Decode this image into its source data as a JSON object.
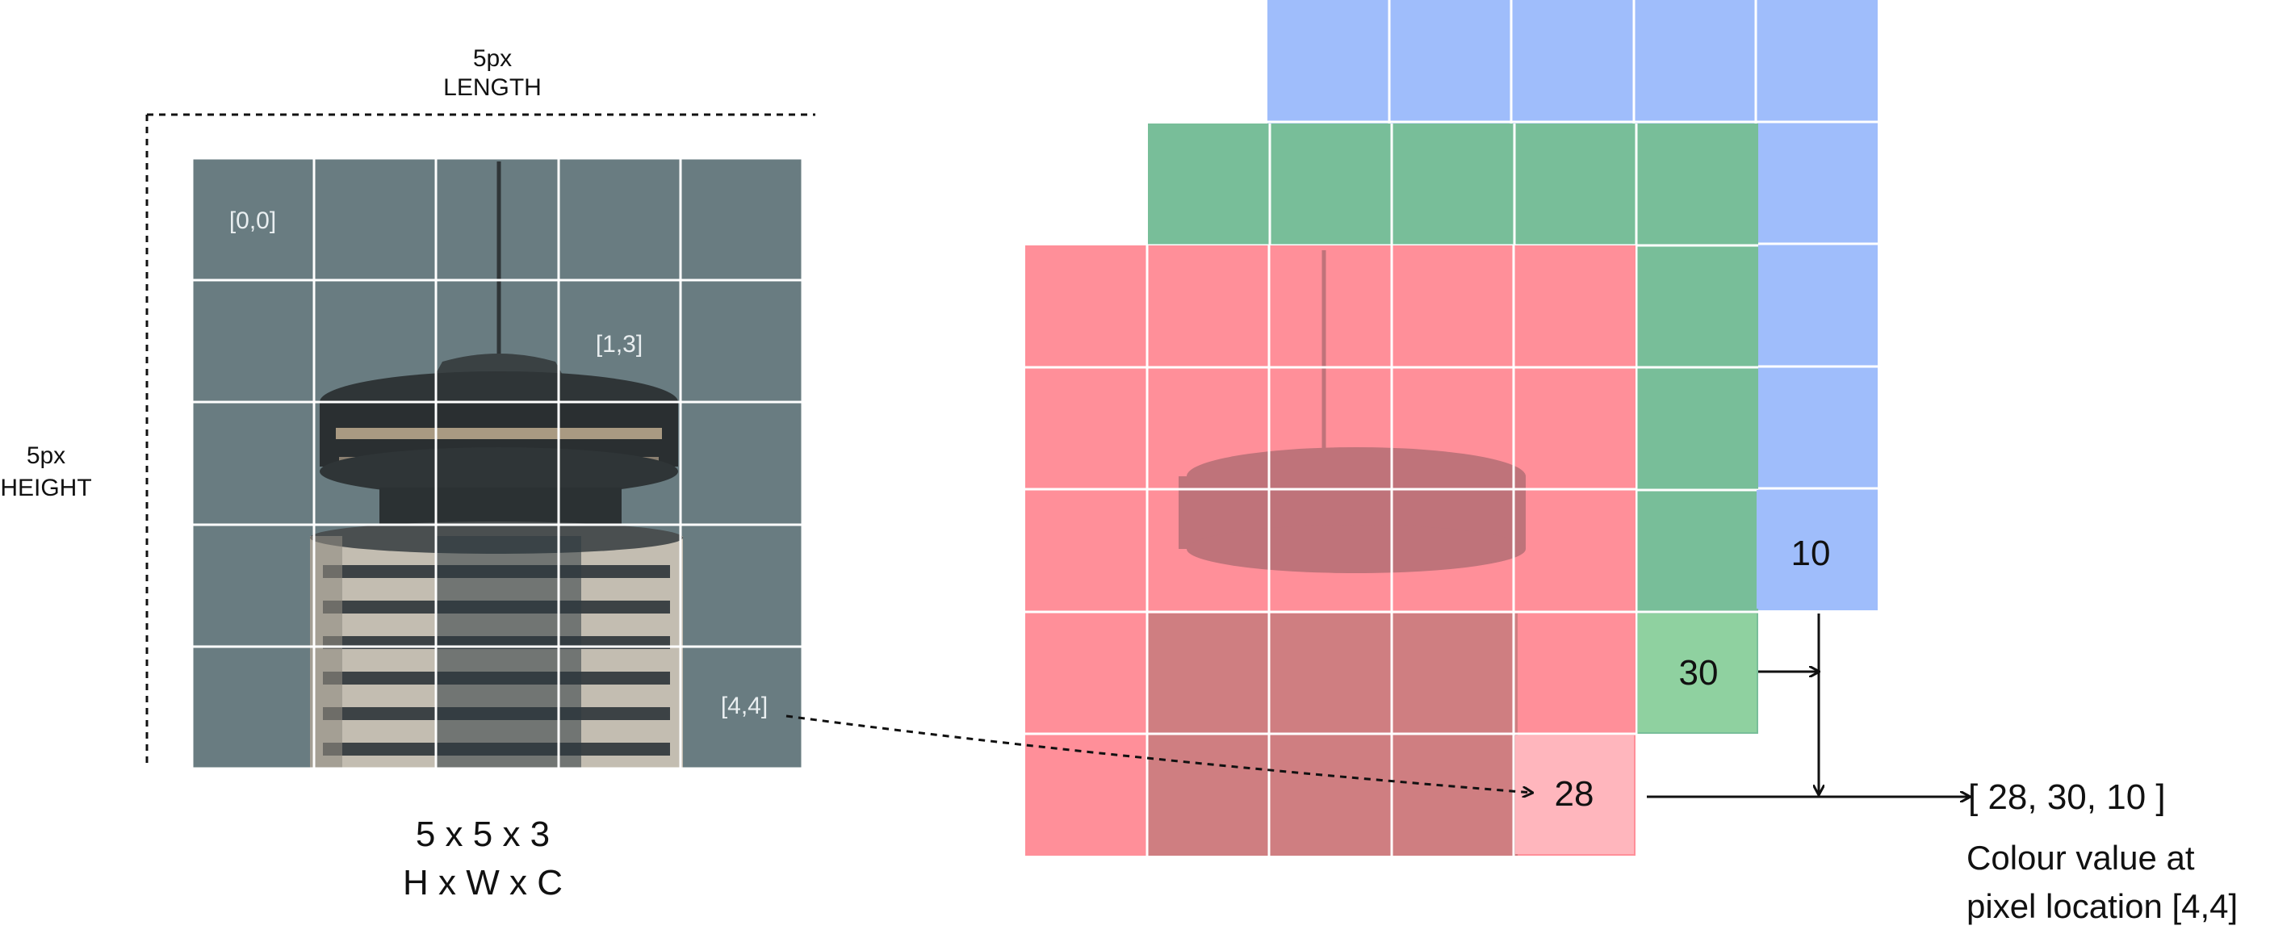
{
  "image_grid": {
    "width_label_1": "5px",
    "width_label_2": "LENGTH",
    "height_label_1": "5px",
    "height_label_2": "HEIGHT",
    "coords": [
      "[0,0]",
      "[1,3]",
      "[4,4]"
    ],
    "shape_label": "5 x 5 x 3",
    "dims_label": "H x W x C"
  },
  "channels": {
    "red": {
      "color": "#ff8f99",
      "value": "28"
    },
    "green": {
      "color": "#8fd1a0",
      "value": "30"
    },
    "blue": {
      "color": "#9fbdfb",
      "value": "10"
    }
  },
  "result": {
    "vector": "[ 28, 30, 10 ]",
    "caption_line1": "Colour value at",
    "caption_line2": "pixel location [4,4]"
  },
  "photo_colors": {
    "sky": "#6f8286",
    "tower_dark": "#2f3537",
    "tower_light": "#b8b3aa"
  }
}
